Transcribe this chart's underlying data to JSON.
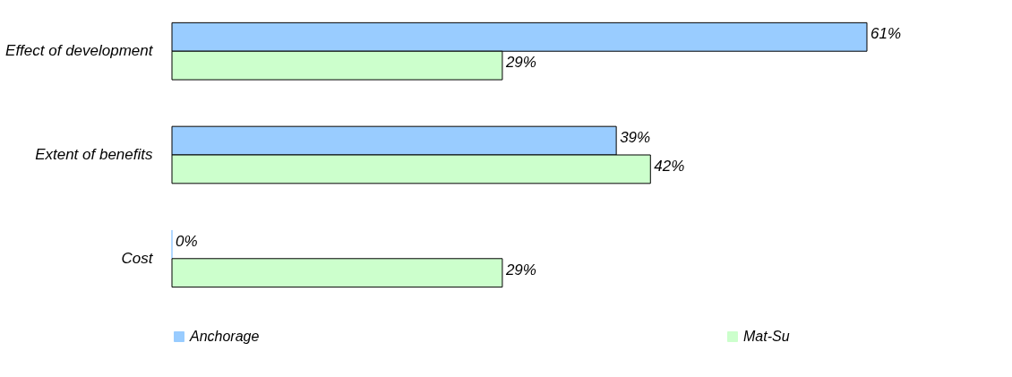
{
  "chart_data": {
    "type": "bar",
    "orientation": "horizontal",
    "categories": [
      "Effect of development",
      "Extent of benefits",
      "Cost"
    ],
    "series": [
      {
        "name": "Anchorage",
        "color": "#99ccff",
        "values": [
          61,
          39,
          0
        ],
        "value_labels": [
          "61%",
          "39%",
          "0%"
        ]
      },
      {
        "name": "Mat-Su",
        "color": "#ccffcc",
        "values": [
          29,
          42,
          29
        ],
        "value_labels": [
          "29%",
          "42%",
          "29%"
        ]
      }
    ],
    "legend": "bottom",
    "tick_labels": "y"
  }
}
